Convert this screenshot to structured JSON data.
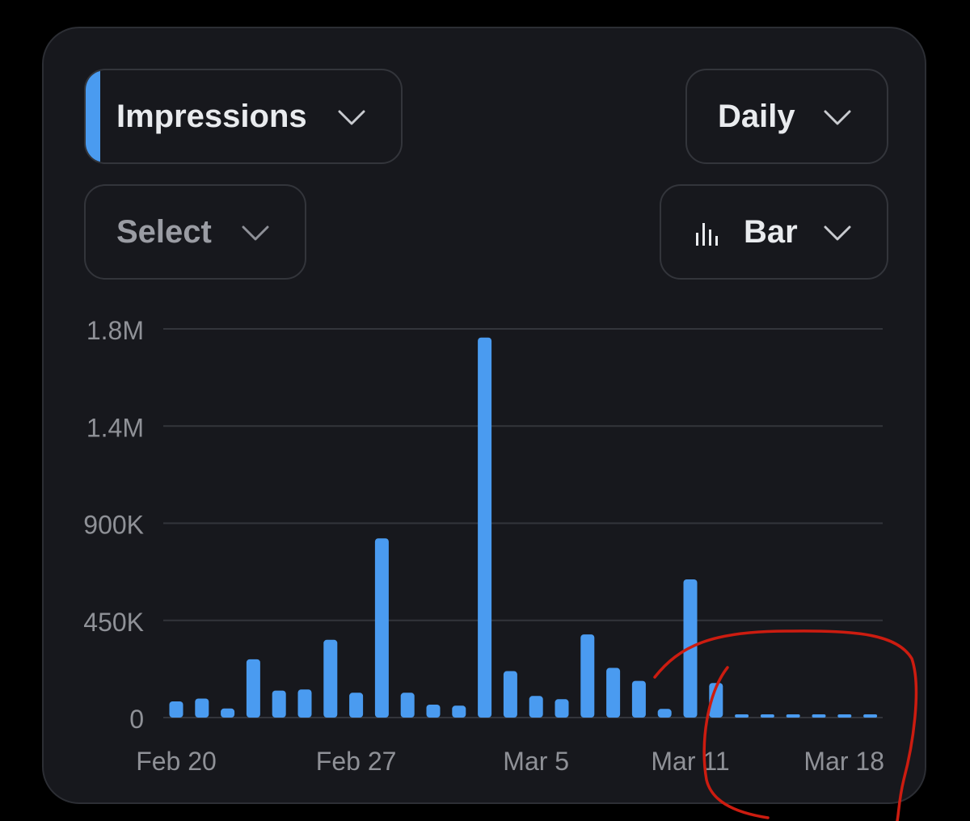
{
  "controls": {
    "metric": {
      "label": "Impressions",
      "accent_color": "#4a9bf0",
      "icon": "chevron-down-icon"
    },
    "period": {
      "label": "Daily",
      "icon": "chevron-down-icon"
    },
    "compare": {
      "label": "Select",
      "icon": "chevron-down-icon"
    },
    "chart_type": {
      "label": "Bar",
      "icon": "bar-chart-icon"
    }
  },
  "chart_data": {
    "type": "bar",
    "title": "",
    "xlabel": "",
    "ylabel": "",
    "color": "#4a9bf0",
    "grid": true,
    "y_ticks": [
      {
        "value": 0,
        "label": "0"
      },
      {
        "value": 450000,
        "label": "450K"
      },
      {
        "value": 900000,
        "label": "900K"
      },
      {
        "value": 1350000,
        "label": "1.4M"
      },
      {
        "value": 1800000,
        "label": "1.8M"
      }
    ],
    "ylim": [
      0,
      1800000
    ],
    "x_ticks": [
      {
        "category": "Feb 20",
        "label": "Feb 20"
      },
      {
        "category": "Feb 27",
        "label": "Feb 27"
      },
      {
        "category": "Mar 5",
        "label": "Mar 5"
      },
      {
        "category": "Mar 11",
        "label": "Mar 11"
      },
      {
        "category": "Mar 18",
        "label": "Mar 18"
      }
    ],
    "categories": [
      "Feb 20",
      "Feb 21",
      "Feb 22",
      "Feb 23",
      "Feb 24",
      "Feb 25",
      "Feb 26",
      "Feb 27",
      "Feb 28",
      "Feb 29",
      "Mar 1",
      "Mar 2",
      "Mar 3",
      "Mar 4",
      "Mar 5",
      "Mar 6",
      "Mar 7",
      "Mar 8",
      "Mar 9",
      "Mar 10",
      "Mar 11",
      "Mar 12",
      "Mar 13",
      "Mar 14",
      "Mar 15",
      "Mar 16",
      "Mar 17",
      "Mar 18"
    ],
    "values": [
      75000,
      88000,
      42000,
      270000,
      125000,
      130000,
      360000,
      115000,
      830000,
      115000,
      60000,
      55000,
      1760000,
      215000,
      100000,
      85000,
      385000,
      230000,
      170000,
      40000,
      640000,
      160000,
      12000,
      12000,
      10000,
      10000,
      8000,
      6000
    ]
  },
  "annotation": {
    "color": "#cc1c10"
  }
}
